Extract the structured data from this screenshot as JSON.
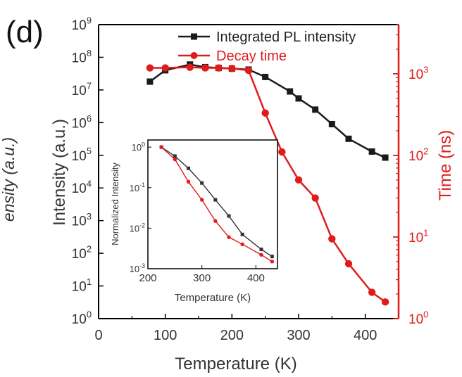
{
  "panel_label": "(d)",
  "colors": {
    "pl": "#1a1a1a",
    "decay": "#e01b1b",
    "axis_right": "#e01b1b",
    "axis_left": "#000000"
  },
  "chart_data": [
    {
      "type": "line",
      "title": "",
      "xlabel": "Temperature (K)",
      "ylabel_left": "Intensity (a.u.)",
      "ylabel_left_clipped": "ensity (a.u.)",
      "ylabel_right": "Time (ns)",
      "xlim": [
        0,
        450
      ],
      "ylim_left": [
        1,
        1000000000
      ],
      "ylim_right": [
        1,
        4000
      ],
      "yscale": "log",
      "x_ticks": [
        "0",
        "100",
        "200",
        "300",
        "400"
      ],
      "left_ticks": [
        {
          "base": "10",
          "exp": "0"
        },
        {
          "base": "10",
          "exp": "1"
        },
        {
          "base": "10",
          "exp": "2"
        },
        {
          "base": "10",
          "exp": "3"
        },
        {
          "base": "10",
          "exp": "4"
        },
        {
          "base": "10",
          "exp": "5"
        },
        {
          "base": "10",
          "exp": "6"
        },
        {
          "base": "10",
          "exp": "7"
        },
        {
          "base": "10",
          "exp": "8"
        },
        {
          "base": "10",
          "exp": "9"
        }
      ],
      "right_ticks": [
        {
          "base": "10",
          "exp": "0"
        },
        {
          "base": "10",
          "exp": "1"
        },
        {
          "base": "10",
          "exp": "2"
        },
        {
          "base": "10",
          "exp": "3"
        }
      ],
      "legend_position": "top-right",
      "series": [
        {
          "name": "Integrated PL intensity",
          "axis": "left",
          "marker": "square",
          "x": [
            77,
            100,
            137,
            160,
            180,
            200,
            225,
            250,
            287,
            300,
            325,
            350,
            375,
            410,
            430
          ],
          "y": [
            18000000,
            40000000,
            60000000,
            50000000,
            47000000,
            45000000,
            42000000,
            25000000,
            9000000,
            5500000,
            2500000,
            900000,
            320000,
            130000,
            85000
          ]
        },
        {
          "name": "Decay time",
          "axis": "right",
          "marker": "circle",
          "x": [
            77,
            100,
            137,
            160,
            180,
            200,
            225,
            250,
            275,
            300,
            325,
            350,
            375,
            410,
            430
          ],
          "y": [
            1180,
            1180,
            1200,
            1180,
            1180,
            1160,
            1100,
            330,
            110,
            50,
            30,
            9.5,
            4.7,
            2.1,
            1.6
          ]
        }
      ]
    },
    {
      "type": "line",
      "title": "",
      "inset": true,
      "xlabel": "Temperature (K)",
      "ylabel": "Normalized Intensity",
      "xlim": [
        200,
        440
      ],
      "ylim": [
        0.001,
        1.5
      ],
      "yscale": "log",
      "x_ticks": [
        "200",
        "300",
        "400"
      ],
      "y_ticks": [
        {
          "base": "10",
          "exp": "-3"
        },
        {
          "base": "10",
          "exp": "-2"
        },
        {
          "base": "10",
          "exp": "-1"
        },
        {
          "base": "10",
          "exp": "0"
        }
      ],
      "series": [
        {
          "axis": "left",
          "marker": "square",
          "x": [
            225,
            250,
            275,
            300,
            325,
            350,
            375,
            410,
            430
          ],
          "y": [
            1.0,
            0.6,
            0.3,
            0.13,
            0.05,
            0.02,
            0.007,
            0.003,
            0.002
          ]
        },
        {
          "axis": "left",
          "marker": "circle",
          "x": [
            225,
            250,
            275,
            300,
            325,
            350,
            375,
            410,
            430
          ],
          "y": [
            1.0,
            0.5,
            0.14,
            0.05,
            0.015,
            0.006,
            0.004,
            0.0022,
            0.0015
          ]
        }
      ]
    }
  ]
}
